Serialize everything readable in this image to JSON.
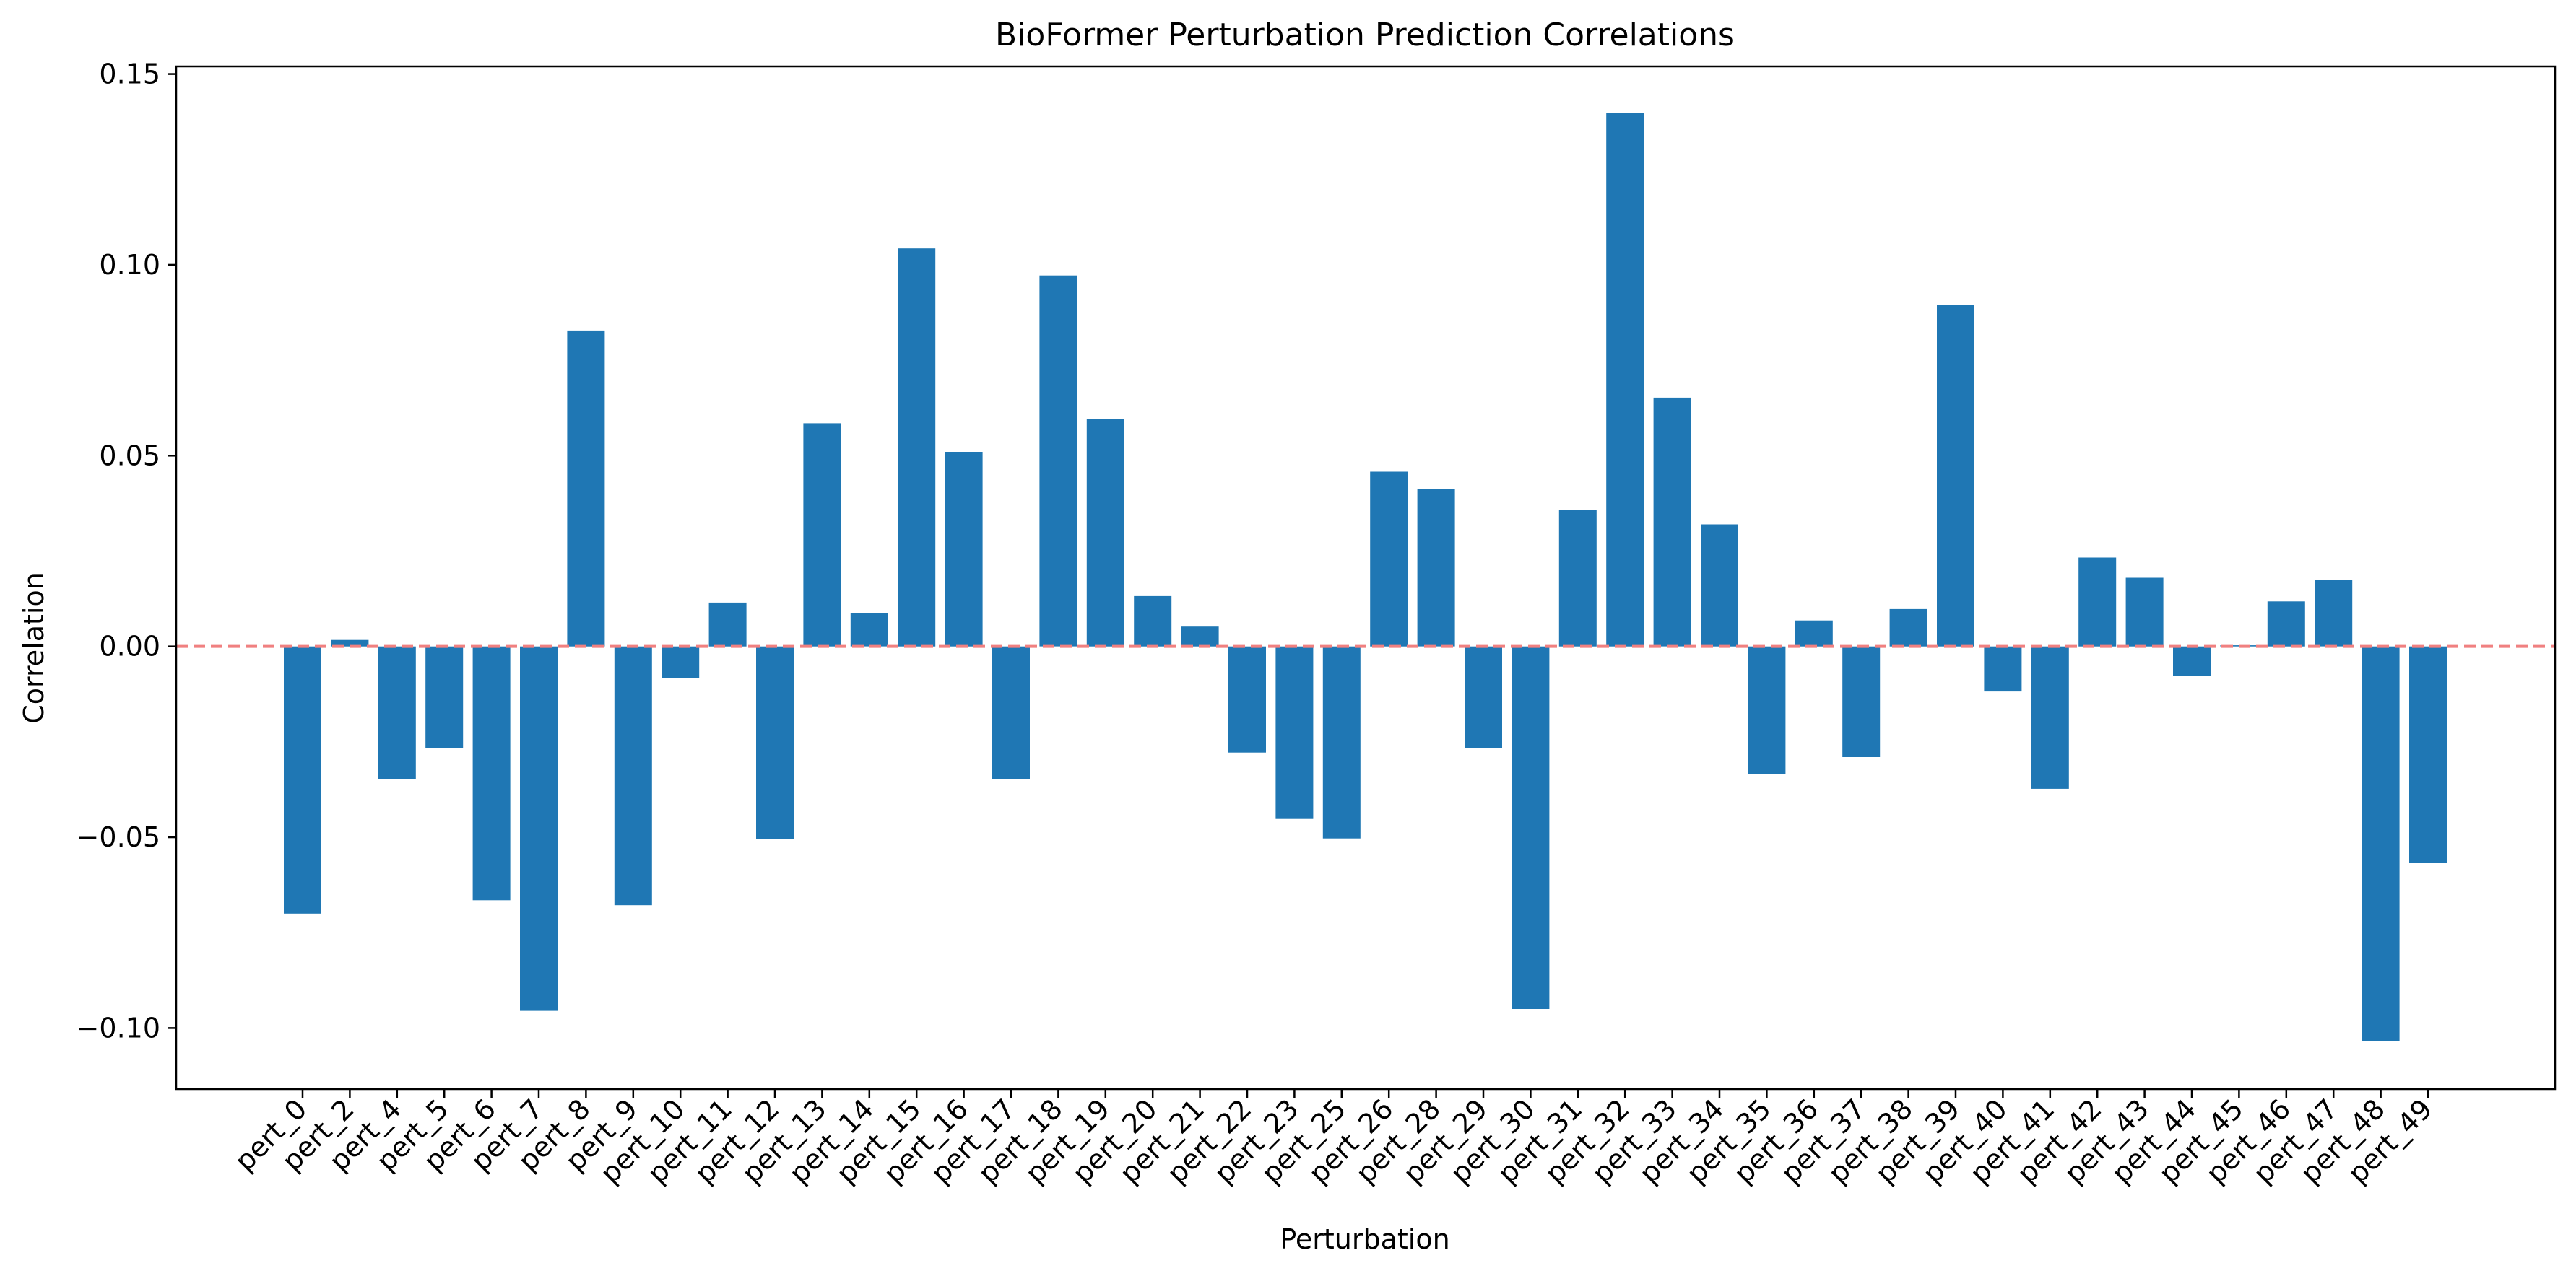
{
  "chart_data": {
    "type": "bar",
    "title": "BioFormer Perturbation Prediction Correlations",
    "xlabel": "Perturbation",
    "ylabel": "Correlation",
    "ylim": [
      -0.116,
      0.152
    ],
    "yticks": [
      -0.1,
      -0.05,
      0.0,
      0.05,
      0.1,
      0.15
    ],
    "ytick_labels": [
      "−0.10",
      "−0.05",
      "0.00",
      "0.05",
      "0.10",
      "0.15"
    ],
    "categories": [
      "pert_0",
      "pert_2",
      "pert_4",
      "pert_5",
      "pert_6",
      "pert_7",
      "pert_8",
      "pert_9",
      "pert_10",
      "pert_11",
      "pert_12",
      "pert_13",
      "pert_14",
      "pert_15",
      "pert_16",
      "pert_17",
      "pert_18",
      "pert_19",
      "pert_20",
      "pert_21",
      "pert_22",
      "pert_23",
      "pert_25",
      "pert_26",
      "pert_28",
      "pert_29",
      "pert_30",
      "pert_31",
      "pert_32",
      "pert_33",
      "pert_34",
      "pert_35",
      "pert_36",
      "pert_37",
      "pert_38",
      "pert_39",
      "pert_40",
      "pert_41",
      "pert_42",
      "pert_43",
      "pert_44",
      "pert_45",
      "pert_46",
      "pert_47",
      "pert_48",
      "pert_49"
    ],
    "values": [
      -0.07,
      0.0017,
      -0.0347,
      -0.0267,
      -0.0665,
      -0.0955,
      0.0828,
      -0.0678,
      -0.0082,
      0.0115,
      -0.0505,
      0.0585,
      0.0088,
      0.1043,
      0.051,
      -0.0347,
      0.0972,
      0.0597,
      0.0132,
      0.0052,
      -0.0278,
      -0.0452,
      -0.0503,
      0.0458,
      0.0412,
      -0.0267,
      -0.095,
      0.0357,
      0.1398,
      0.0652,
      0.032,
      -0.0335,
      0.0068,
      -0.029,
      0.0098,
      0.0895,
      -0.0118,
      -0.0373,
      0.0233,
      0.018,
      -0.0077,
      0.0003,
      0.0118,
      0.0175,
      -0.1035,
      -0.0568
    ],
    "bar_color": "#1f77b4",
    "reference_line": {
      "y": 0.0,
      "color": "#f08080",
      "style": "dashed"
    },
    "grid": false,
    "legend": "none"
  }
}
